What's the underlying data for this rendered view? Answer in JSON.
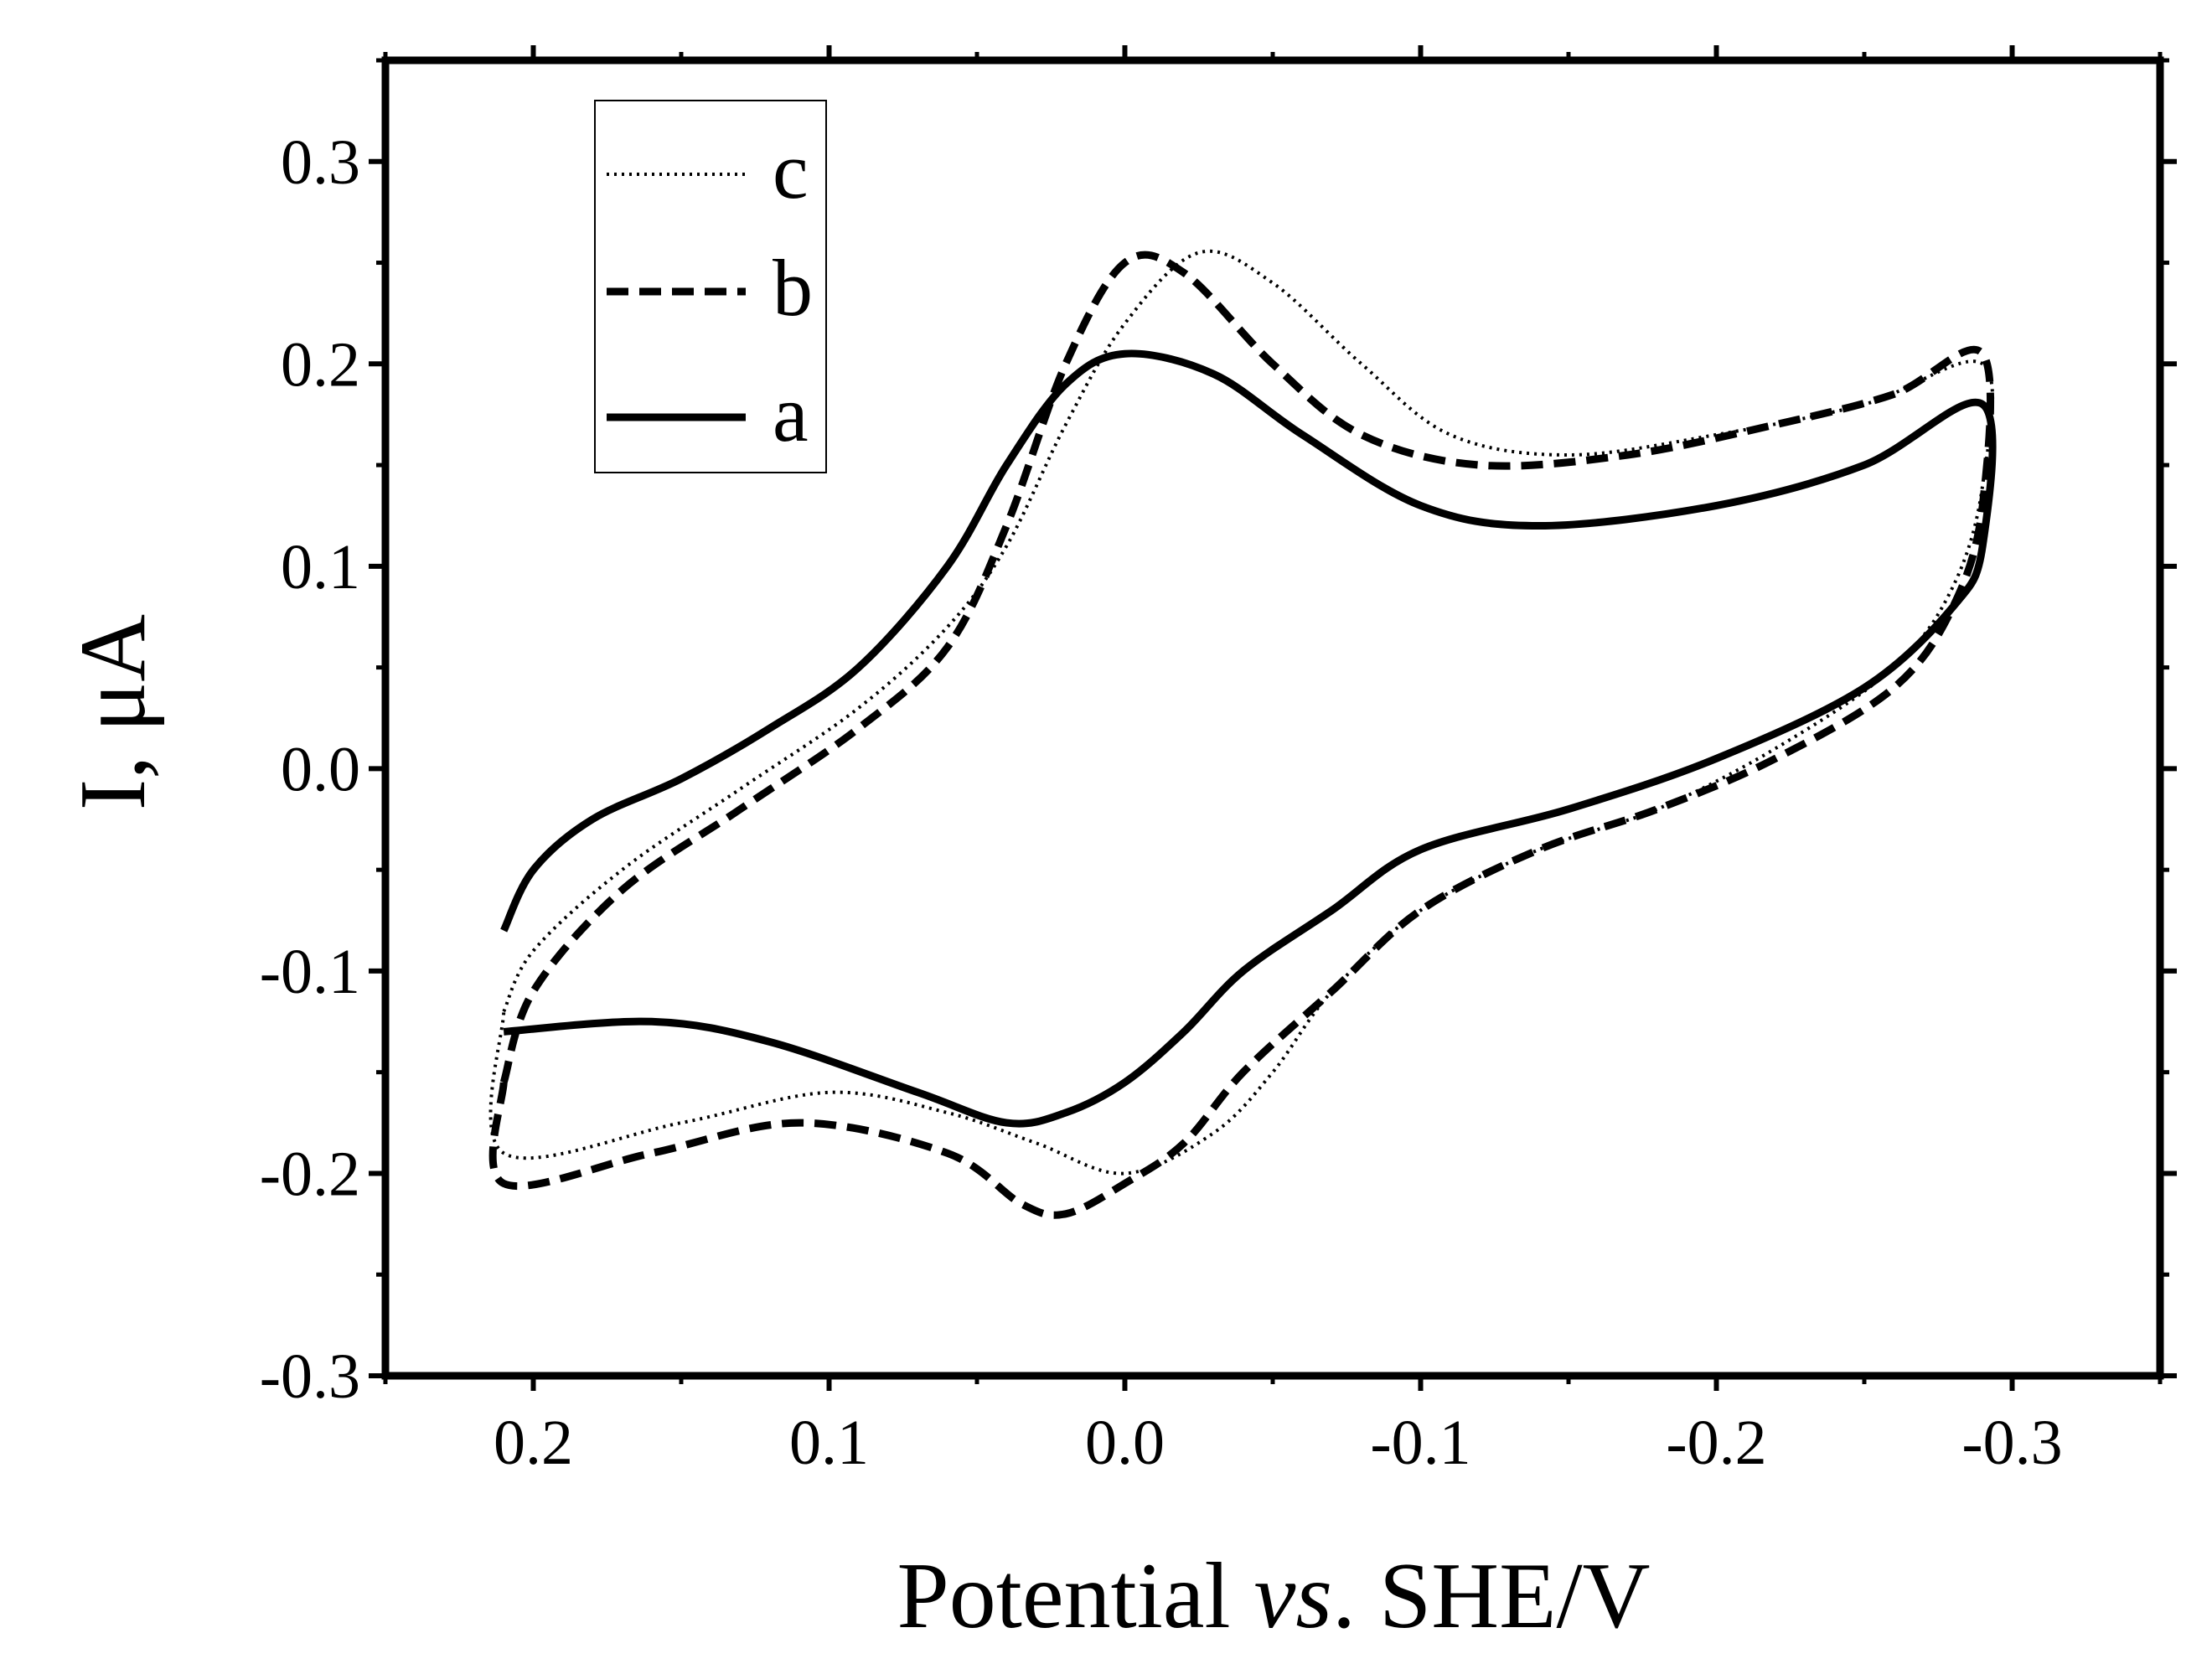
{
  "chart_data": {
    "type": "line",
    "title": "",
    "xlabel_parts": [
      "Potential ",
      "vs",
      ". SHE/V"
    ],
    "ylabel": "I, μA",
    "xlim": [
      0.25,
      -0.35
    ],
    "ylim": [
      -0.3,
      0.35
    ],
    "x_ticks": [
      0.2,
      0.1,
      0.0,
      -0.1,
      -0.2,
      -0.3
    ],
    "x_tick_labels": [
      "0.2",
      "0.1",
      "0.0",
      "-0.1",
      "-0.2",
      "-0.3"
    ],
    "y_ticks": [
      0.3,
      0.2,
      0.1,
      0.0,
      -0.1,
      -0.2,
      -0.3
    ],
    "y_tick_labels": [
      "0.3",
      "0.2",
      "0.1",
      "0.0",
      "-0.1",
      "-0.2",
      "-0.3"
    ],
    "grid": false,
    "legend_position": "top-left",
    "series": [
      {
        "name": "c",
        "style": "dotted",
        "color": "#000000",
        "x": [
          0.21,
          0.2,
          0.17,
          0.13,
          0.09,
          0.06,
          0.04,
          0.02,
          0.0,
          -0.025,
          -0.05,
          -0.08,
          -0.11,
          -0.15,
          -0.2,
          -0.25,
          -0.29,
          -0.29,
          -0.28,
          -0.26,
          -0.22,
          -0.18,
          -0.14,
          -0.1,
          -0.07,
          -0.05,
          -0.03,
          0.0,
          0.03,
          0.06,
          0.1,
          0.15,
          0.21,
          0.21
        ],
        "y": [
          -0.12,
          -0.09,
          -0.05,
          -0.01,
          0.03,
          0.07,
          0.11,
          0.17,
          0.22,
          0.255,
          0.24,
          0.2,
          0.165,
          0.155,
          0.165,
          0.18,
          0.2,
          0.14,
          0.09,
          0.05,
          0.01,
          -0.02,
          -0.04,
          -0.07,
          -0.11,
          -0.15,
          -0.18,
          -0.2,
          -0.185,
          -0.17,
          -0.16,
          -0.175,
          -0.19,
          -0.12
        ]
      },
      {
        "name": "b",
        "style": "dashed",
        "color": "#000000",
        "x": [
          0.21,
          0.2,
          0.17,
          0.13,
          0.09,
          0.06,
          0.04,
          0.02,
          0.0,
          -0.02,
          -0.05,
          -0.08,
          -0.12,
          -0.17,
          -0.22,
          -0.26,
          -0.29,
          -0.29,
          -0.28,
          -0.26,
          -0.22,
          -0.18,
          -0.14,
          -0.1,
          -0.07,
          -0.04,
          -0.02,
          0.0,
          0.02,
          0.035,
          0.06,
          0.11,
          0.16,
          0.21,
          0.21
        ],
        "y": [
          -0.155,
          -0.11,
          -0.06,
          -0.02,
          0.02,
          0.06,
          0.12,
          0.2,
          0.25,
          0.245,
          0.2,
          0.165,
          0.15,
          0.155,
          0.17,
          0.185,
          0.205,
          0.13,
          0.08,
          0.04,
          0.005,
          -0.02,
          -0.04,
          -0.07,
          -0.11,
          -0.15,
          -0.185,
          -0.205,
          -0.22,
          -0.215,
          -0.19,
          -0.175,
          -0.19,
          -0.205,
          -0.155
        ]
      },
      {
        "name": "a",
        "style": "solid",
        "color": "#000000",
        "x": [
          0.21,
          0.2,
          0.18,
          0.15,
          0.12,
          0.09,
          0.06,
          0.04,
          0.02,
          0.0,
          -0.03,
          -0.06,
          -0.1,
          -0.14,
          -0.2,
          -0.25,
          -0.29,
          -0.29,
          -0.28,
          -0.25,
          -0.2,
          -0.15,
          -0.1,
          -0.07,
          -0.04,
          -0.02,
          0.0,
          0.02,
          0.04,
          0.07,
          0.12,
          0.16,
          0.21
        ],
        "y": [
          -0.08,
          -0.05,
          -0.025,
          -0.005,
          0.02,
          0.05,
          0.1,
          0.15,
          0.19,
          0.205,
          0.195,
          0.165,
          0.13,
          0.12,
          0.13,
          0.15,
          0.18,
          0.11,
          0.08,
          0.04,
          0.005,
          -0.02,
          -0.04,
          -0.07,
          -0.1,
          -0.13,
          -0.155,
          -0.17,
          -0.175,
          -0.16,
          -0.135,
          -0.125,
          -0.13
        ]
      }
    ]
  }
}
